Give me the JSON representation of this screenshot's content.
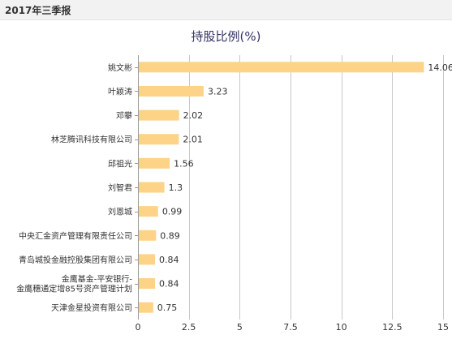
{
  "header": {
    "title": "2017年三季报"
  },
  "chart_data": {
    "type": "bar",
    "orientation": "horizontal",
    "title": "持股比例(%)",
    "xlabel": "",
    "ylabel": "",
    "xlim": [
      0,
      15
    ],
    "xticks": [
      "0",
      "2.5",
      "5",
      "7.5",
      "10",
      "12.5",
      "15"
    ],
    "grid": true,
    "legend": "none",
    "bar_color": "#fdd388",
    "categories": [
      [
        "姚文彬"
      ],
      [
        "叶颖涛"
      ],
      [
        "邓攀"
      ],
      [
        "林芝腾讯科技有限公司"
      ],
      [
        "邱祖光"
      ],
      [
        "刘智君"
      ],
      [
        "刘恩城"
      ],
      [
        "中央汇金资产管理有限责任公司"
      ],
      [
        "青岛城投金融控股集团有限公司"
      ],
      [
        "金鹰基金-平安银行-",
        "金鹰穗通定增85号资产管理计划"
      ],
      [
        "天津金星投资有限公司"
      ]
    ],
    "values": [
      14.06,
      3.23,
      2.02,
      2.01,
      1.56,
      1.3,
      0.99,
      0.89,
      0.84,
      0.84,
      0.75
    ],
    "value_labels": [
      "14.06",
      "3.23",
      "2.02",
      "2.01",
      "1.56",
      "1.3",
      "0.99",
      "0.89",
      "0.84",
      "0.84",
      "0.75"
    ]
  }
}
